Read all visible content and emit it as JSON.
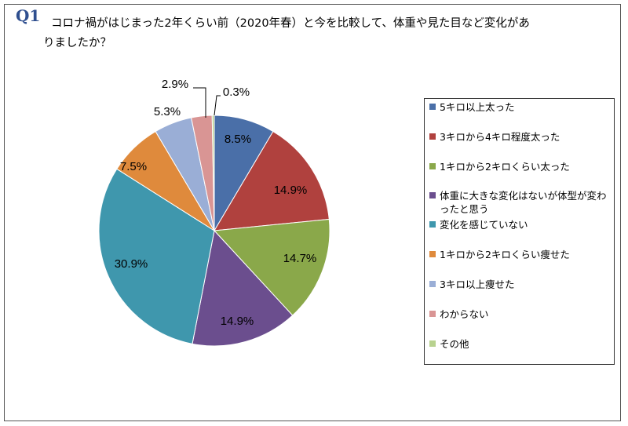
{
  "header": {
    "qnum": "Q1",
    "question": "コロナ禍がはじまった2年くらい前（2020年春）と今を比較して、体重や見た目など変化がありましたか？"
  },
  "chart_data": {
    "type": "pie",
    "start_angle": "12 o'clock",
    "direction": "clockwise",
    "legend_position": "right",
    "slices": [
      {
        "label": "5キロ以上太った",
        "value": 8.5,
        "value_label": "8.5%",
        "color": "#4a6fa8"
      },
      {
        "label": "3キロから4キロ程度太った",
        "value": 14.9,
        "value_label": "14.9%",
        "color": "#b0413e"
      },
      {
        "label": "1キロから2キロくらい太った",
        "value": 14.7,
        "value_label": "14.7%",
        "color": "#8aa84a"
      },
      {
        "label": "体重に大きな変化はないが体型が変わったと思う",
        "value": 14.9,
        "value_label": "14.9%",
        "color": "#6b4e8e"
      },
      {
        "label": "変化を感じていない",
        "value": 30.9,
        "value_label": "30.9%",
        "color": "#3f97ad"
      },
      {
        "label": "1キロから2キロくらい痩せた",
        "value": 7.5,
        "value_label": "7.5%",
        "color": "#df8a3c"
      },
      {
        "label": "3キロ以上痩せた",
        "value": 5.3,
        "value_label": "5.3%",
        "color": "#9aaed6"
      },
      {
        "label": "わからない",
        "value": 2.9,
        "value_label": "2.9%",
        "color": "#d99594"
      },
      {
        "label": "その他",
        "value": 0.3,
        "value_label": "0.3%",
        "color": "#b8d28f"
      }
    ]
  }
}
